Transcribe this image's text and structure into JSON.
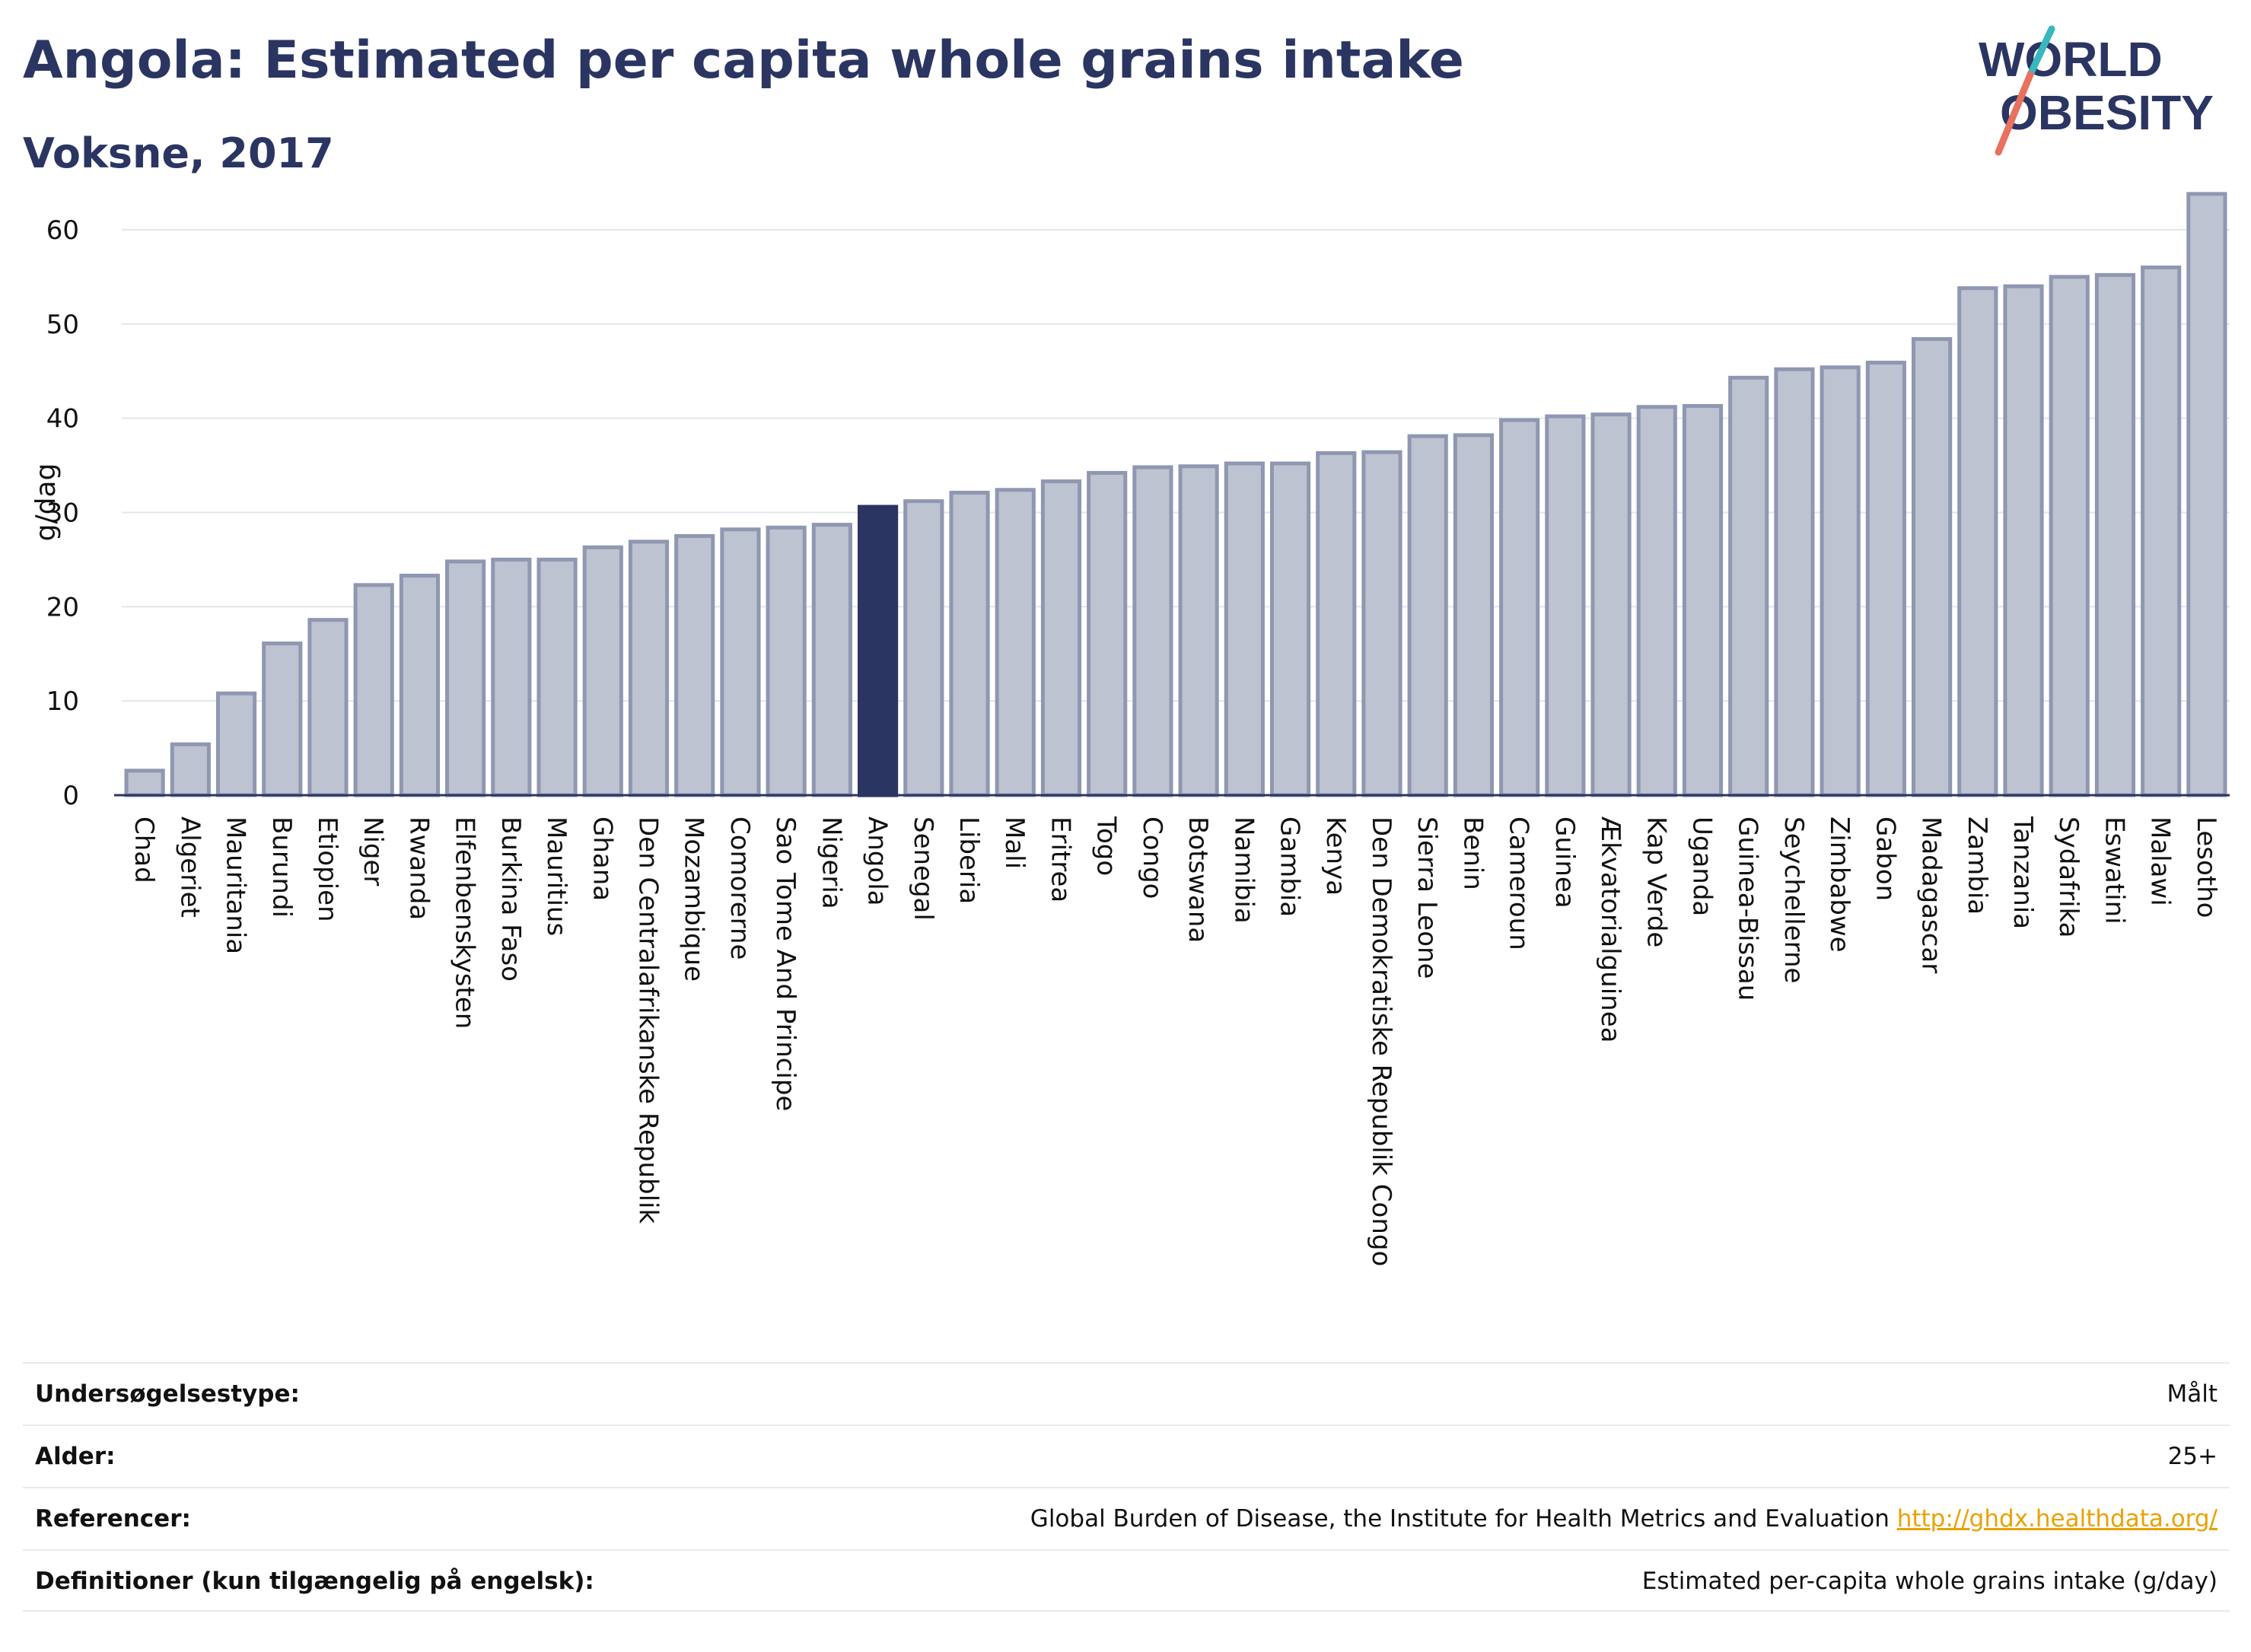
{
  "header": {
    "title": "Angola: Estimated per capita whole grains intake",
    "subtitle": "Voksne, 2017"
  },
  "logo": {
    "line1": "WORLD",
    "line2": "OBESITY"
  },
  "colors": {
    "bar": "#bec3d1",
    "bar_border": "#8f97b1",
    "highlight": "#2b3562",
    "grid": "#e3e6ea",
    "link": "#e9a200"
  },
  "chart_data": {
    "type": "bar",
    "ylabel": "g/dag",
    "ylim": [
      0,
      65
    ],
    "yticks": [
      0,
      10,
      20,
      30,
      40,
      50,
      60
    ],
    "highlight": "Angola",
    "categories": [
      "Chad",
      "Algeriet",
      "Mauritania",
      "Burundi",
      "Etiopien",
      "Niger",
      "Rwanda",
      "Elfenbenskysten",
      "Burkina Faso",
      "Mauritius",
      "Ghana",
      "Den Centralafrikanske Republik",
      "Mozambique",
      "Comorerne",
      "Sao Tome And Principe",
      "Nigeria",
      "Angola",
      "Senegal",
      "Liberia",
      "Mali",
      "Eritrea",
      "Togo",
      "Congo",
      "Botswana",
      "Namibia",
      "Gambia",
      "Kenya",
      "Den Demokratiske Republik Congo",
      "Sierra Leone",
      "Benin",
      "Cameroun",
      "Guinea",
      "Ækvatorialguinea",
      "Kap Verde",
      "Uganda",
      "Guinea-Bissau",
      "Seychellerne",
      "Zimbabwe",
      "Gabon",
      "Madagascar",
      "Zambia",
      "Tanzania",
      "Sydafrika",
      "Eswatini",
      "Malawi",
      "Lesotho"
    ],
    "values": [
      2.6,
      5.4,
      10.8,
      16.1,
      18.6,
      22.3,
      23.3,
      24.8,
      25.0,
      25.0,
      26.3,
      26.9,
      27.5,
      28.2,
      28.4,
      28.7,
      30.6,
      31.2,
      32.1,
      32.4,
      33.3,
      34.2,
      34.8,
      34.9,
      35.2,
      35.2,
      36.3,
      36.4,
      38.1,
      38.2,
      39.8,
      40.2,
      40.4,
      41.2,
      41.3,
      44.3,
      45.2,
      45.4,
      45.9,
      48.4,
      53.8,
      54.0,
      55.0,
      55.2,
      56.0,
      63.8
    ]
  },
  "meta": [
    {
      "label": "Undersøgelsestype:",
      "value": "Målt"
    },
    {
      "label": "Alder:",
      "value": "25+"
    },
    {
      "label": "Referencer:",
      "value": "Global Burden of Disease, the Institute for Health Metrics and Evaluation",
      "link": "http://ghdx.healthdata.org/"
    },
    {
      "label": "Definitioner (kun tilgængelig på engelsk):",
      "value": "Estimated per-capita whole grains intake (g/day)"
    }
  ]
}
